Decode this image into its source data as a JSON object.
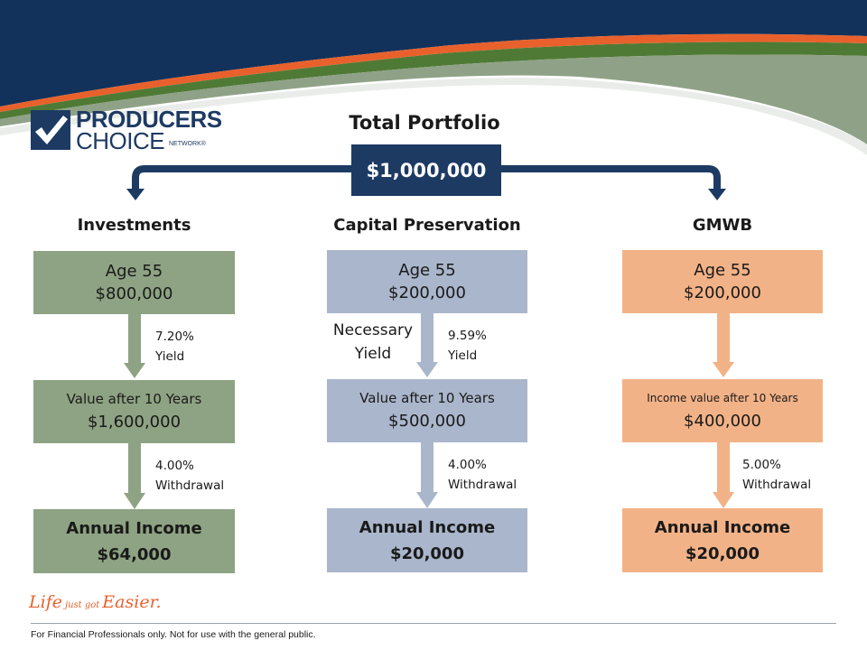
{
  "header": {
    "title": "Total Portfolio",
    "total": "$1,000,000"
  },
  "logo": {
    "line1": "PRODUCERS",
    "line2": "CHOICE",
    "line3": "NETWORK®",
    "icon": "checkmark-icon"
  },
  "columns": {
    "investments": {
      "heading": "Investments",
      "top_age": "Age 55",
      "top_amount": "$800,000",
      "rate1": "7.20%",
      "rate1_label": "Yield",
      "mid_label": "Value after 10 Years",
      "mid_value": "$1,600,000",
      "rate2": "4.00%",
      "rate2_label": "Withdrawal",
      "bottom_label": "Annual Income",
      "bottom_value": "$64,000"
    },
    "capital": {
      "heading": "Capital Preservation",
      "top_age": "Age 55",
      "top_amount": "$200,000",
      "side_label1": "Necessary",
      "side_label2": "Yield",
      "rate1": "9.59%",
      "rate1_label": "Yield",
      "mid_label": "Value after 10 Years",
      "mid_value": "$500,000",
      "rate2": "4.00%",
      "rate2_label": "Withdrawal",
      "bottom_label": "Annual Income",
      "bottom_value": "$20,000"
    },
    "gmwb": {
      "heading": "GMWB",
      "top_age": "Age 55",
      "top_amount": "$200,000",
      "mid_label": "Income value after 10 Years",
      "mid_value": "$400,000",
      "rate2": "5.00%",
      "rate2_label": "Withdrawal",
      "bottom_label": "Annual Income",
      "bottom_value": "$20,000"
    }
  },
  "tagline": {
    "part1": "Life",
    "part2": "just got",
    "part3": "Easier."
  },
  "footer": "For Financial Professionals only. Not for use with the general public.",
  "colors": {
    "navy": "#1d3a63",
    "orange": "#e8612c",
    "green": "#4f7a35",
    "investments": "#8ea383",
    "capital": "#aab6cb",
    "gmwb": "#f2b287"
  }
}
